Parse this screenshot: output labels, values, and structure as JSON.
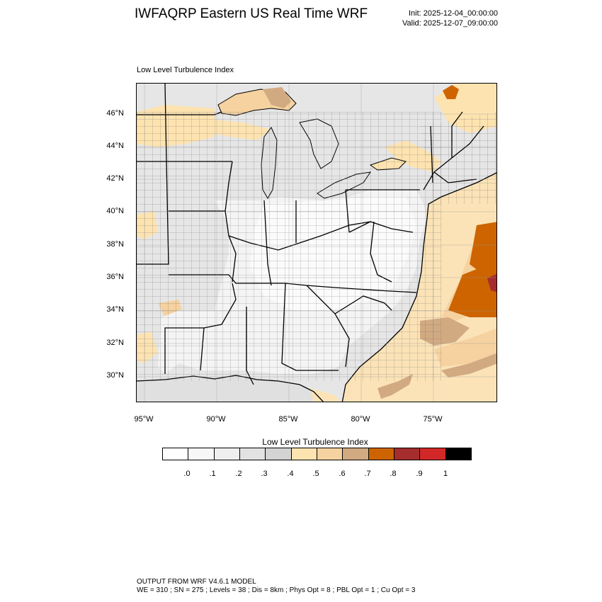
{
  "header": {
    "title": "IWFAQRP Eastern US Real Time WRF",
    "init": "Init: 2025-12-04_00:00:00",
    "valid": "Valid: 2025-12-07_09:00:00"
  },
  "panel_label": "Low Level Turbulence Index",
  "map": {
    "lat_labels": [
      "46°N",
      "44°N",
      "42°N",
      "40°N",
      "38°N",
      "36°N",
      "34°N",
      "32°N",
      "30°N"
    ],
    "lon_labels": [
      "95°W",
      "90°W",
      "85°W",
      "80°W",
      "75°W"
    ],
    "colors": {
      "land_base": "#e6e6e6",
      "water_base": "#fbe3b7",
      "boundary": "#000000",
      "county": "#555555"
    }
  },
  "colorbar": {
    "title": "Low Level Turbulence Index",
    "colors": [
      "#ffffff",
      "#f7f7f7",
      "#efefef",
      "#e2e2e2",
      "#d3d3d3",
      "#fde3b0",
      "#f5d2a0",
      "#d2aa82",
      "#cd6400",
      "#a52d2d",
      "#d22828",
      "#000000"
    ],
    "ticks": [
      ".0",
      ".1",
      ".2",
      ".3",
      ".4",
      ".5",
      ".6",
      ".7",
      ".8",
      ".9",
      "1"
    ]
  },
  "footer": {
    "line1": "OUTPUT FROM WRF V4.6.1 MODEL",
    "line2": "WE = 310 ; SN = 275 ; Levels = 38 ; Dis = 8km ; Phys Opt = 8 ; PBL Opt = 1 ; Cu Opt = 3"
  }
}
